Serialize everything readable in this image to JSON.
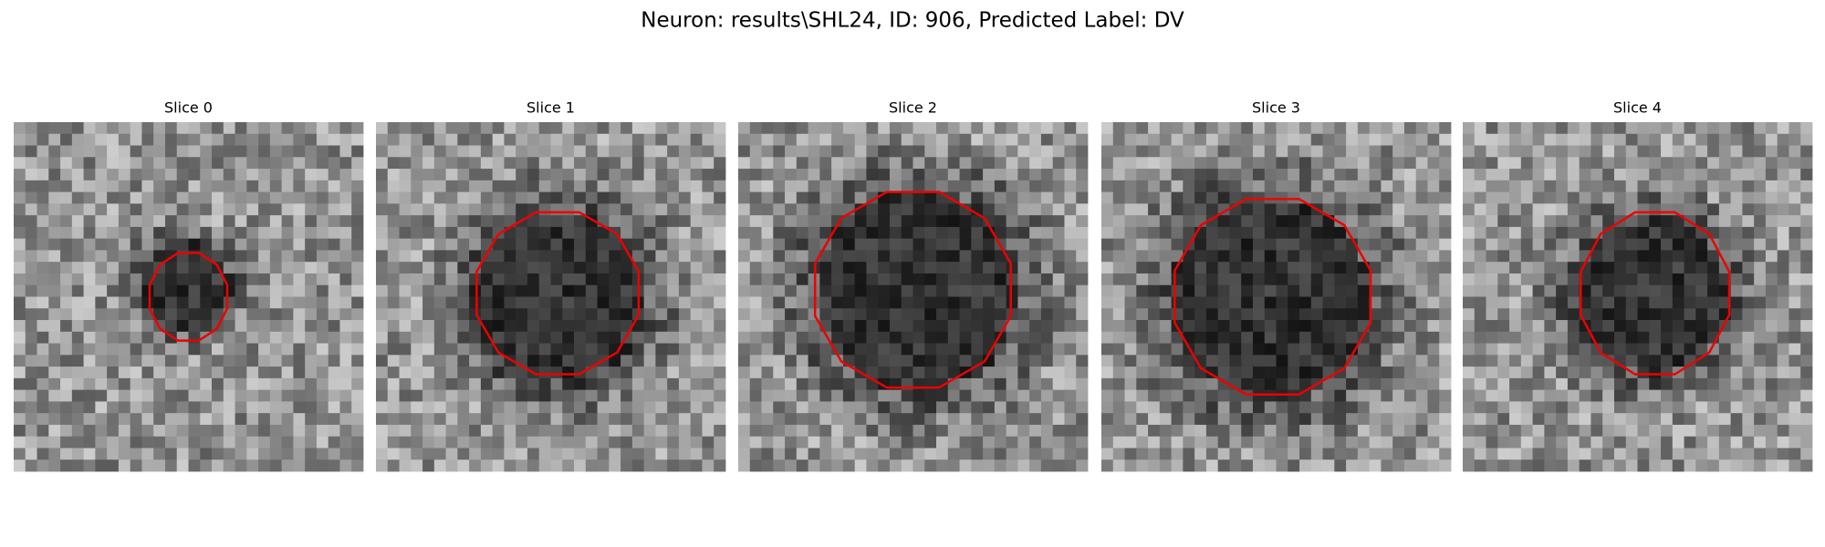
{
  "title": "Neuron: results\\SHL24, ID: 906, Predicted Label: DV",
  "panels": [
    {
      "title": "Slice 0"
    },
    {
      "title": "Slice 1"
    },
    {
      "title": "Slice 2"
    },
    {
      "title": "Slice 3"
    },
    {
      "title": "Slice 4"
    }
  ]
}
